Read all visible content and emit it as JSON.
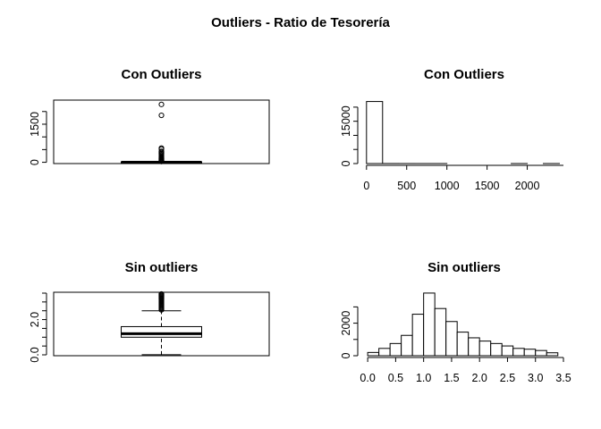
{
  "title": "Outliers - Ratio de Tesorería",
  "chart_data": [
    {
      "type": "boxplot",
      "title": "Con Outliers",
      "ylim": [
        -50,
        2450
      ],
      "y_ticks": [
        0,
        500,
        1000,
        1500,
        2000
      ],
      "y_tick_labels": [
        "0",
        "",
        "",
        "1500",
        ""
      ],
      "whisker_low": 0,
      "q1": 2,
      "median": 5,
      "q3": 12,
      "whisker_high": 30,
      "outliers": [
        2280,
        1850,
        560,
        520,
        430,
        390,
        340,
        300,
        260,
        220,
        190,
        160,
        130,
        110,
        90,
        70,
        55,
        45,
        38,
        33
      ]
    },
    {
      "type": "histogram",
      "title": "Con Outliers",
      "xlim": [
        -20,
        2450
      ],
      "ylim": [
        0,
        22500
      ],
      "x_ticks": [
        0,
        500,
        1000,
        1500,
        2000
      ],
      "x_tick_labels": [
        "0",
        "500",
        "1000",
        "1500",
        "2000"
      ],
      "y_ticks": [
        0,
        5000,
        10000,
        15000,
        20000
      ],
      "y_tick_labels": [
        "0",
        "",
        "",
        "15000",
        ""
      ],
      "bins": [
        [
          0,
          200,
          22000
        ],
        [
          200,
          400,
          15
        ],
        [
          400,
          600,
          5
        ],
        [
          600,
          800,
          2
        ],
        [
          800,
          1000,
          1
        ],
        [
          1000,
          1200,
          0
        ],
        [
          1200,
          1400,
          0
        ],
        [
          1400,
          1600,
          0
        ],
        [
          1600,
          1800,
          0
        ],
        [
          1800,
          2000,
          1
        ],
        [
          2000,
          2200,
          0
        ],
        [
          2200,
          2400,
          1
        ]
      ]
    },
    {
      "type": "boxplot",
      "title": "Sin outliers",
      "ylim": [
        -0.05,
        3.55
      ],
      "y_ticks": [
        0,
        0.5,
        1,
        1.5,
        2,
        2.5,
        3,
        3.5
      ],
      "y_tick_labels": [
        "0.0",
        "",
        "",
        "",
        "2.0",
        "",
        "",
        ""
      ],
      "whisker_low": 0.01,
      "q1": 1.0,
      "median": 1.2,
      "q3": 1.6,
      "whisker_high": 2.5,
      "outliers": [
        2.55,
        2.6,
        2.65,
        2.7,
        2.75,
        2.8,
        2.85,
        2.9,
        2.95,
        3.0,
        3.05,
        3.1,
        3.15,
        3.2,
        3.25,
        3.3,
        3.35,
        3.4,
        3.45
      ]
    },
    {
      "type": "histogram",
      "title": "Sin outliers",
      "xlim": [
        -0.05,
        3.5
      ],
      "ylim": [
        0,
        3900
      ],
      "x_ticks": [
        0,
        0.5,
        1,
        1.5,
        2,
        2.5,
        3,
        3.5
      ],
      "x_tick_labels": [
        "0.0",
        "0.5",
        "1.0",
        "1.5",
        "2.0",
        "2.5",
        "3.0",
        "3.5"
      ],
      "y_ticks": [
        0,
        1000,
        2000,
        3000
      ],
      "y_tick_labels": [
        "0",
        "",
        "2000",
        ""
      ],
      "bins": [
        [
          0,
          0.2,
          200
        ],
        [
          0.2,
          0.4,
          450
        ],
        [
          0.4,
          0.6,
          750
        ],
        [
          0.6,
          0.8,
          1250
        ],
        [
          0.8,
          1.0,
          2550
        ],
        [
          1.0,
          1.2,
          3850
        ],
        [
          1.2,
          1.4,
          2900
        ],
        [
          1.4,
          1.6,
          2100
        ],
        [
          1.6,
          1.8,
          1450
        ],
        [
          1.8,
          2.0,
          1100
        ],
        [
          2.0,
          2.2,
          900
        ],
        [
          2.2,
          2.4,
          750
        ],
        [
          2.4,
          2.6,
          600
        ],
        [
          2.6,
          2.8,
          450
        ],
        [
          2.8,
          3.0,
          400
        ],
        [
          3.0,
          3.2,
          320
        ],
        [
          3.2,
          3.4,
          180
        ]
      ]
    }
  ]
}
